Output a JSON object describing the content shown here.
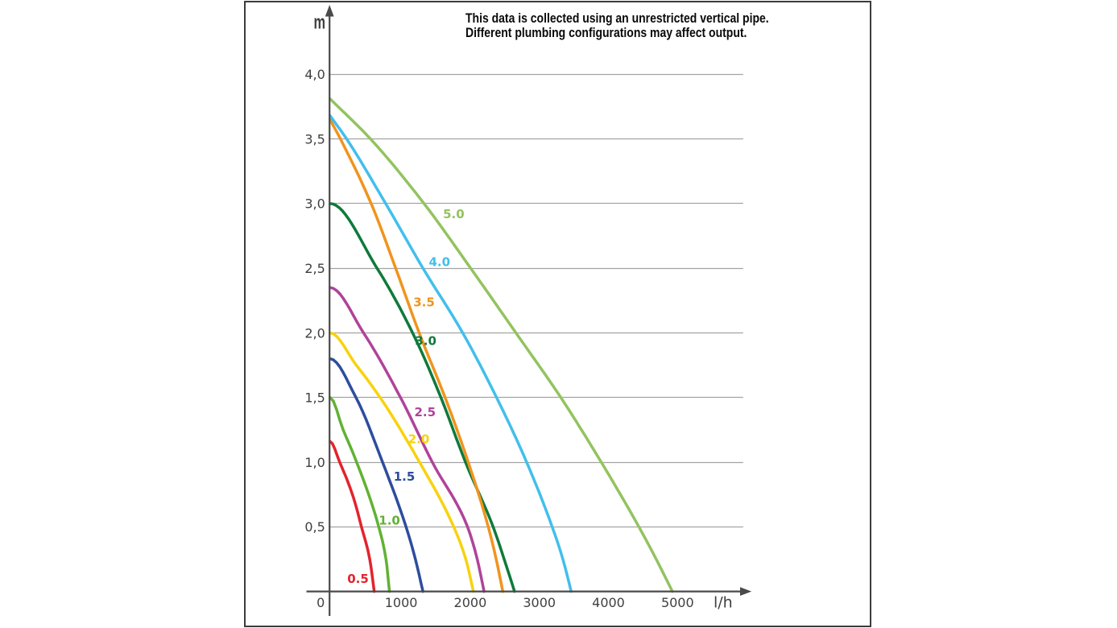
{
  "page": {
    "background": "#ffffff"
  },
  "frame": {
    "border_color": "#3c3c3c"
  },
  "chart_data": {
    "type": "line",
    "title": "This data is collected using an unrestricted vertical pipe. Different plumbing configurations may affect output.",
    "note_lines": [
      "This data is collected using an unrestricted vertical pipe.",
      "Different plumbing configurations may affect output."
    ],
    "xlabel": "l/h",
    "ylabel": "m",
    "x_unit": "litres per hour",
    "y_unit": "metres head",
    "xlim": [
      0,
      6100
    ],
    "ylim": [
      0,
      4.55
    ],
    "grid": "horizontal-only",
    "legend_position": "labels-on-curves",
    "x_ticks": [
      {
        "value": 0,
        "label": "0"
      },
      {
        "value": 1000,
        "label": "1000"
      },
      {
        "value": 2000,
        "label": "2000"
      },
      {
        "value": 3000,
        "label": "3000"
      },
      {
        "value": 4000,
        "label": "4000"
      },
      {
        "value": 5000,
        "label": "5000"
      }
    ],
    "y_ticks": [
      {
        "value": 0.5,
        "label": "0,5"
      },
      {
        "value": 1.0,
        "label": "1,0"
      },
      {
        "value": 1.5,
        "label": "1,5"
      },
      {
        "value": 2.0,
        "label": "2,0"
      },
      {
        "value": 2.5,
        "label": "2,5"
      },
      {
        "value": 3.0,
        "label": "3,0"
      },
      {
        "value": 3.5,
        "label": "3,5"
      },
      {
        "value": 4.0,
        "label": "4,0"
      }
    ],
    "series": [
      {
        "name": "0.5",
        "color": "#e3232d",
        "label_pos": {
          "flow_lh": 405,
          "head_m": 0.1
        },
        "points": [
          [
            0,
            1.16
          ],
          [
            140,
            1.0
          ],
          [
            337,
            0.73
          ],
          [
            455,
            0.5
          ],
          [
            575,
            0.25
          ],
          [
            640,
            0
          ]
        ],
        "start_shoulder": "flat"
      },
      {
        "name": "1.0",
        "color": "#61b232",
        "label_pos": {
          "flow_lh": 860,
          "head_m": 0.55
        },
        "points": [
          [
            0,
            1.5
          ],
          [
            190,
            1.25
          ],
          [
            385,
            1.0
          ],
          [
            705,
            0.5
          ],
          [
            810,
            0.25
          ],
          [
            860,
            0
          ]
        ],
        "start_shoulder": "flat"
      },
      {
        "name": "1.5",
        "color": "#2d4d9e",
        "label_pos": {
          "flow_lh": 1075,
          "head_m": 0.89
        },
        "points": [
          [
            0,
            1.8
          ],
          [
            375,
            1.5
          ],
          [
            760,
            1.0
          ],
          [
            1100,
            0.5
          ],
          [
            1235,
            0.25
          ],
          [
            1345,
            0
          ]
        ],
        "start_shoulder": "flat"
      },
      {
        "name": "2.0",
        "color": "#f8d20e",
        "label_pos": {
          "flow_lh": 1285,
          "head_m": 1.18
        },
        "points": [
          [
            0,
            2.0
          ],
          [
            380,
            1.75
          ],
          [
            725,
            1.5
          ],
          [
            1295,
            1.0
          ],
          [
            1790,
            0.5
          ],
          [
            1965,
            0.25
          ],
          [
            2075,
            0
          ]
        ],
        "start_shoulder": "flat"
      },
      {
        "name": "2.5",
        "color": "#b0439a",
        "label_pos": {
          "flow_lh": 1375,
          "head_m": 1.39
        },
        "points": [
          [
            0,
            2.35
          ],
          [
            485,
            2.0
          ],
          [
            1020,
            1.5
          ],
          [
            1480,
            1.0
          ],
          [
            1990,
            0.5
          ],
          [
            2130,
            0.25
          ],
          [
            2230,
            0
          ]
        ],
        "start_shoulder": "flat"
      },
      {
        "name": "3.0",
        "color": "#0e7a3a",
        "label_pos": {
          "flow_lh": 1385,
          "head_m": 1.94
        },
        "points": [
          [
            0,
            3.0
          ],
          [
            680,
            2.5
          ],
          [
            1195,
            2.0
          ],
          [
            1605,
            1.5
          ],
          [
            1960,
            1.0
          ],
          [
            2360,
            0.5
          ],
          [
            2520,
            0.25
          ],
          [
            2670,
            0
          ]
        ],
        "start_shoulder": "flat"
      },
      {
        "name": "3.5",
        "color": "#f0941e",
        "label_pos": {
          "flow_lh": 1360,
          "head_m": 2.24
        },
        "points": [
          [
            0,
            3.65
          ],
          [
            150,
            3.5
          ],
          [
            595,
            3.0
          ],
          [
            950,
            2.5
          ],
          [
            1290,
            2.0
          ],
          [
            1665,
            1.5
          ],
          [
            2000,
            1.0
          ],
          [
            2290,
            0.5
          ],
          [
            2405,
            0.25
          ],
          [
            2500,
            0
          ]
        ],
        "start_shoulder": "sloped"
      },
      {
        "name": "4.0",
        "color": "#41bfec",
        "label_pos": {
          "flow_lh": 1585,
          "head_m": 2.55
        },
        "points": [
          [
            0,
            3.68
          ],
          [
            240,
            3.5
          ],
          [
            805,
            3.0
          ],
          [
            1345,
            2.5
          ],
          [
            1920,
            2.0
          ],
          [
            2410,
            1.5
          ],
          [
            2845,
            1.0
          ],
          [
            3215,
            0.5
          ],
          [
            3370,
            0.25
          ],
          [
            3490,
            0
          ]
        ],
        "start_shoulder": "sloped"
      },
      {
        "name": "5.0",
        "color": "#93c35f",
        "label_pos": {
          "flow_lh": 1790,
          "head_m": 2.92
        },
        "points": [
          [
            0,
            3.81
          ],
          [
            585,
            3.5
          ],
          [
            1360,
            3.0
          ],
          [
            2035,
            2.5
          ],
          [
            2690,
            2.0
          ],
          [
            3340,
            1.5
          ],
          [
            3925,
            1.0
          ],
          [
            4470,
            0.5
          ],
          [
            4720,
            0.25
          ],
          [
            4955,
            0
          ]
        ],
        "start_shoulder": "sloped"
      }
    ]
  },
  "colors": {
    "axis": "#4a4a4a",
    "grid": "#a3a3a3",
    "tick_label": "#3f3f3f",
    "note_text": "#0a0a0a"
  }
}
